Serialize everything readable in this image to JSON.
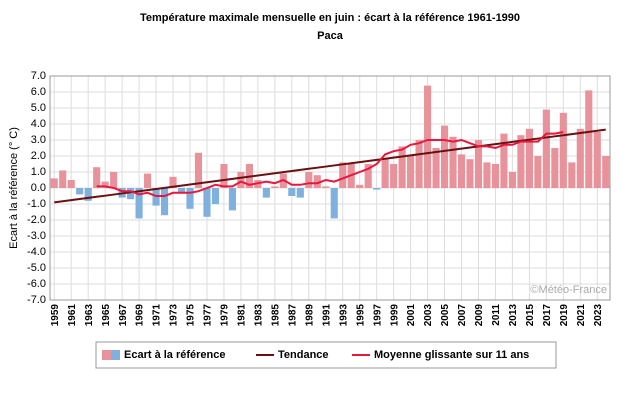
{
  "chart_data": {
    "type": "bar",
    "title": "Température maximale mensuelle en juin : écart à la référence 1961-1990",
    "subtitle": "Paca",
    "y_label": "Ecart à la référence (° C)",
    "watermark": "©Météo-France",
    "categories": [
      "1959",
      null,
      "1961",
      null,
      "1963",
      null,
      "1965",
      null,
      "1967",
      null,
      "1969",
      null,
      "1971",
      null,
      "1973",
      null,
      "1975",
      null,
      "1977",
      null,
      "1979",
      null,
      "1981",
      null,
      "1983",
      null,
      "1985",
      null,
      "1987",
      null,
      "1989",
      null,
      "1991",
      null,
      "1993",
      null,
      "1995",
      null,
      "1997",
      null,
      "1999",
      null,
      "2001",
      null,
      "2003",
      null,
      "2005",
      null,
      "2007",
      null,
      "2009",
      null,
      "2011",
      null,
      "2013",
      null,
      "2015",
      null,
      "2017",
      null,
      "2019",
      null,
      "2021",
      null,
      "2023",
      null
    ],
    "series": [
      {
        "name": "Ecart à la référence",
        "type": "bar",
        "color": "#e8939b",
        "color_negative": "#7fb0de",
        "values": [
          0.6,
          1.1,
          0.5,
          -0.4,
          -0.8,
          1.3,
          0.4,
          1.0,
          -0.6,
          -0.7,
          -1.9,
          0.9,
          -1.1,
          -1.7,
          0.7,
          -0.3,
          -1.3,
          2.2,
          -1.8,
          -1.0,
          1.5,
          -1.4,
          1.0,
          1.5,
          0.5,
          -0.6,
          0.1,
          0.9,
          -0.5,
          -0.6,
          1.0,
          0.8,
          0.1,
          -1.9,
          1.6,
          1.5,
          0.2,
          1.5,
          -0.1,
          1.8,
          1.5,
          2.6,
          2.0,
          3.0,
          6.4,
          2.5,
          3.9,
          3.2,
          2.1,
          1.8,
          3.0,
          1.6,
          1.5,
          3.4,
          1.0,
          3.3,
          3.7,
          2.0,
          4.9,
          2.5,
          4.7,
          1.6,
          3.7,
          6.1,
          3.5,
          2.0
        ]
      },
      {
        "name": "Tendance",
        "type": "line",
        "color": "#6b1010",
        "values": [
          -0.9,
          -0.83,
          -0.76,
          -0.69,
          -0.62,
          -0.55,
          -0.48,
          -0.41,
          -0.34,
          -0.27,
          -0.2,
          -0.13,
          -0.06,
          0.01,
          0.08,
          0.15,
          0.22,
          0.29,
          0.36,
          0.43,
          0.5,
          0.57,
          0.64,
          0.71,
          0.78,
          0.85,
          0.92,
          0.99,
          1.06,
          1.13,
          1.2,
          1.27,
          1.34,
          1.41,
          1.48,
          1.55,
          1.62,
          1.69,
          1.76,
          1.83,
          1.9,
          1.97,
          2.04,
          2.11,
          2.18,
          2.25,
          2.32,
          2.39,
          2.46,
          2.53,
          2.6,
          2.67,
          2.74,
          2.81,
          2.88,
          2.95,
          3.02,
          3.09,
          3.16,
          3.23,
          3.3,
          3.37,
          3.44,
          3.51,
          3.58,
          3.65
        ]
      },
      {
        "name": "Moyenne glissante sur 11 ans",
        "type": "line",
        "color": "#e8173c",
        "values": [
          null,
          null,
          null,
          null,
          null,
          0.1,
          0.1,
          0.0,
          -0.2,
          -0.2,
          -0.4,
          -0.3,
          -0.5,
          -0.5,
          -0.3,
          -0.3,
          -0.3,
          -0.2,
          0.0,
          0.2,
          0.1,
          0.1,
          0.4,
          0.2,
          0.3,
          0.4,
          0.3,
          0.5,
          0.2,
          0.2,
          0.3,
          0.3,
          0.5,
          0.4,
          0.6,
          0.8,
          1.0,
          1.2,
          1.5,
          2.1,
          2.3,
          2.4,
          2.7,
          2.8,
          3.0,
          3.0,
          3.0,
          2.9,
          3.0,
          2.8,
          2.6,
          2.6,
          2.5,
          2.7,
          2.7,
          2.9,
          2.9,
          2.9,
          3.4,
          3.4,
          3.5,
          null,
          null,
          null,
          null,
          null
        ]
      }
    ],
    "ylim": [
      -7,
      7
    ],
    "yticks": [
      {
        "value": 7,
        "label": "7.0"
      },
      {
        "value": 6,
        "label": "6.0"
      },
      {
        "value": 5,
        "label": "5.0"
      },
      {
        "value": 4,
        "label": "4.0"
      },
      {
        "value": 3,
        "label": "3.0"
      },
      {
        "value": 2,
        "label": "2.0"
      },
      {
        "value": 1,
        "label": "1.0"
      },
      {
        "value": 0,
        "label": "0.0"
      },
      {
        "value": -1,
        "label": "-1.0"
      },
      {
        "value": -2,
        "label": "-2.0"
      },
      {
        "value": -3,
        "label": "-3.0"
      },
      {
        "value": -4,
        "label": "-4.0"
      },
      {
        "value": -5,
        "label": "-5.0"
      },
      {
        "value": -6,
        "label": "-6.0"
      },
      {
        "value": -7,
        "label": "-7.0"
      }
    ],
    "grid": true
  }
}
